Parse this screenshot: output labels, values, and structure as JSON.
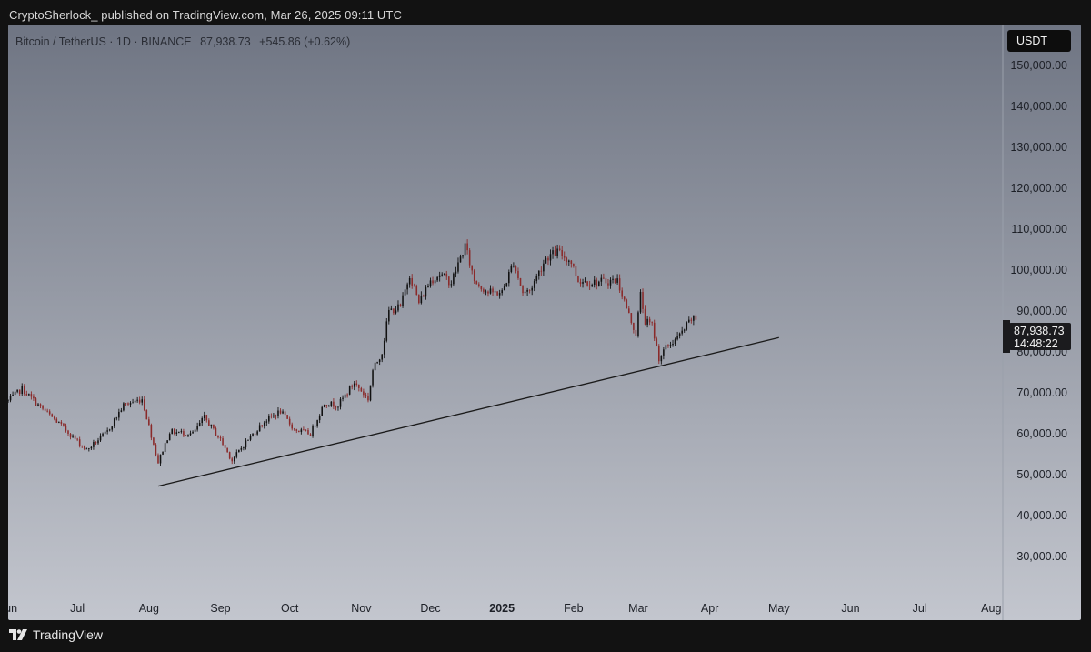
{
  "header": {
    "text": "CryptoSherlock_ published on TradingView.com, Mar 26, 2025 09:11 UTC"
  },
  "symbol": {
    "name": "Bitcoin / TetherUS · 1D · BINANCE",
    "last": "87,938.73",
    "change": "+545.86 (+0.62%)"
  },
  "currency_button": "USDT",
  "price_badge": {
    "price": "87,938.73",
    "countdown": "14:48:22"
  },
  "footer": {
    "brand": "TradingView"
  },
  "colors": {
    "bull": "#111111",
    "bear": "#8a2a2a",
    "trendline": "#1a1a1a",
    "bg_top": "#6f7583",
    "bg_bottom": "#c3c6ce"
  },
  "chart_data": {
    "type": "candlestick",
    "title": "",
    "y_axis": {
      "range": [
        20000,
        160000
      ],
      "ticks": [
        30000,
        40000,
        50000,
        60000,
        70000,
        80000,
        90000,
        100000,
        110000,
        120000,
        130000,
        140000,
        150000
      ],
      "tick_labels": [
        "30,000.00",
        "40,000.00",
        "50,000.00",
        "60,000.00",
        "70,000.00",
        "80,000.00",
        "90,000.00",
        "100,000.00",
        "110,000.00",
        "120,000.00",
        "130,000.00",
        "140,000.00",
        "150,000.00"
      ]
    },
    "x_axis": {
      "range": [
        "2024-06-01",
        "2025-08-06"
      ],
      "ticks": [
        {
          "date": "2024-06-01",
          "label": "Jun",
          "bold": false
        },
        {
          "date": "2024-07-01",
          "label": "Jul",
          "bold": false
        },
        {
          "date": "2024-08-01",
          "label": "Aug",
          "bold": false
        },
        {
          "date": "2024-09-01",
          "label": "Sep",
          "bold": false
        },
        {
          "date": "2024-10-01",
          "label": "Oct",
          "bold": false
        },
        {
          "date": "2024-11-01",
          "label": "Nov",
          "bold": false
        },
        {
          "date": "2024-12-01",
          "label": "Dec",
          "bold": false
        },
        {
          "date": "2025-01-01",
          "label": "2025",
          "bold": true
        },
        {
          "date": "2025-02-01",
          "label": "Feb",
          "bold": false
        },
        {
          "date": "2025-03-01",
          "label": "Mar",
          "bold": false
        },
        {
          "date": "2025-04-01",
          "label": "Apr",
          "bold": false
        },
        {
          "date": "2025-05-01",
          "label": "May",
          "bold": false
        },
        {
          "date": "2025-06-01",
          "label": "Jun",
          "bold": false
        },
        {
          "date": "2025-07-01",
          "label": "Jul",
          "bold": false
        },
        {
          "date": "2025-08-01",
          "label": "Aug",
          "bold": false
        }
      ]
    },
    "close_path": [
      [
        "2024-06-01",
        68000
      ],
      [
        "2024-06-07",
        71000
      ],
      [
        "2024-06-14",
        67000
      ],
      [
        "2024-06-24",
        62000
      ],
      [
        "2024-07-05",
        56000
      ],
      [
        "2024-07-14",
        60500
      ],
      [
        "2024-07-21",
        67000
      ],
      [
        "2024-07-29",
        68500
      ],
      [
        "2024-08-05",
        53000
      ],
      [
        "2024-08-10",
        60500
      ],
      [
        "2024-08-20",
        60000
      ],
      [
        "2024-08-25",
        64000
      ],
      [
        "2024-09-01",
        58500
      ],
      [
        "2024-09-06",
        53500
      ],
      [
        "2024-09-12",
        58000
      ],
      [
        "2024-09-20",
        63000
      ],
      [
        "2024-09-27",
        65500
      ],
      [
        "2024-10-03",
        61000
      ],
      [
        "2024-10-10",
        60000
      ],
      [
        "2024-10-16",
        67500
      ],
      [
        "2024-10-22",
        67000
      ],
      [
        "2024-10-29",
        72500
      ],
      [
        "2024-11-04",
        68500
      ],
      [
        "2024-11-06",
        75500
      ],
      [
        "2024-11-10",
        80000
      ],
      [
        "2024-11-13",
        90000
      ],
      [
        "2024-11-18",
        91000
      ],
      [
        "2024-11-22",
        99000
      ],
      [
        "2024-11-26",
        92000
      ],
      [
        "2024-12-01",
        97500
      ],
      [
        "2024-12-05",
        99000
      ],
      [
        "2024-12-10",
        97000
      ],
      [
        "2024-12-16",
        106000
      ],
      [
        "2024-12-20",
        97500
      ],
      [
        "2024-12-26",
        94500
      ],
      [
        "2025-01-01",
        94500
      ],
      [
        "2025-01-06",
        102000
      ],
      [
        "2025-01-10",
        94500
      ],
      [
        "2025-01-13",
        95000
      ],
      [
        "2025-01-20",
        103000
      ],
      [
        "2025-01-25",
        104500
      ],
      [
        "2025-01-31",
        102000
      ],
      [
        "2025-02-03",
        97500
      ],
      [
        "2025-02-10",
        97000
      ],
      [
        "2025-02-20",
        97500
      ],
      [
        "2025-02-25",
        89000
      ],
      [
        "2025-02-28",
        84500
      ],
      [
        "2025-03-02",
        94000
      ],
      [
        "2025-03-04",
        87500
      ],
      [
        "2025-03-07",
        86500
      ],
      [
        "2025-03-10",
        78500
      ],
      [
        "2025-03-13",
        81000
      ],
      [
        "2025-03-19",
        84000
      ],
      [
        "2025-03-24",
        88000
      ],
      [
        "2025-03-26",
        87939
      ]
    ],
    "trendline": {
      "from": [
        "2024-08-05",
        47200
      ],
      "to": [
        "2025-05-01",
        83500
      ]
    }
  }
}
